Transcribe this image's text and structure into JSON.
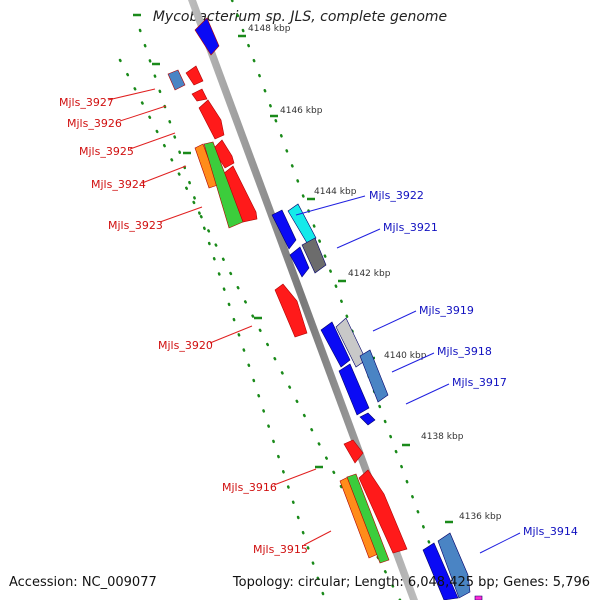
{
  "title": "Mycobacterium sp. JLS, complete genome",
  "accession": "Accession: NC_009077",
  "topology": "Topology: circular; Length: 6,048,425 bp; Genes: 5,796",
  "kbp_ticks": [
    "4148 kbp",
    "4146 kbp",
    "4144 kbp",
    "4142 kbp",
    "4140 kbp",
    "4138 kbp",
    "4136 kbp"
  ],
  "genes_minus": [
    "Mjls_3927",
    "Mjls_3926",
    "Mjls_3925",
    "Mjls_3924",
    "Mjls_3923",
    "Mjls_3920",
    "Mjls_3916",
    "Mjls_3915"
  ],
  "genes_plus": [
    "Mjls_3922",
    "Mjls_3921",
    "Mjls_3919",
    "Mjls_3918",
    "Mjls_3917",
    "Mjls_3914"
  ],
  "colors": {
    "minus_strand": "#ff0000",
    "plus_strand": "#0000ff",
    "backbone": "#888888",
    "tick": "#1a8a1a",
    "minus_label": "#d01010",
    "plus_label": "#1010c0"
  }
}
